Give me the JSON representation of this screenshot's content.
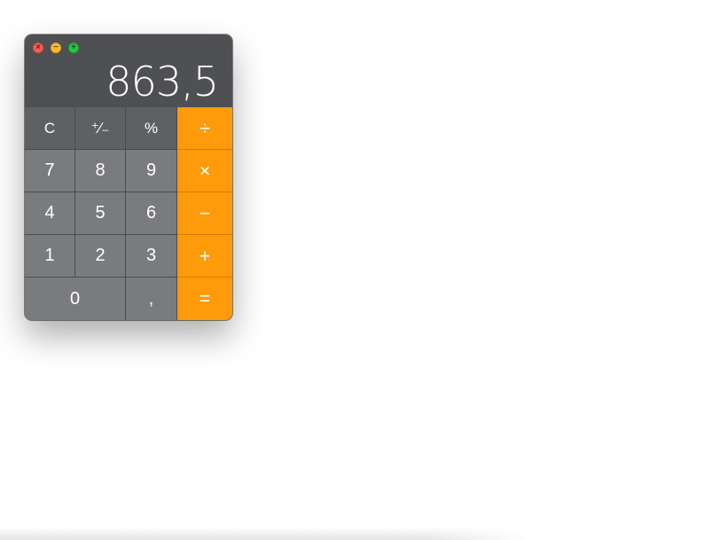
{
  "window": {
    "close_glyph": "×",
    "minimize_glyph": "−",
    "maximize_glyph": "+"
  },
  "display": {
    "value": "863,5"
  },
  "keys": {
    "clear": "C",
    "sign": "⁺∕₋",
    "percent": "%",
    "divide": "÷",
    "seven": "7",
    "eight": "8",
    "nine": "9",
    "multiply": "×",
    "four": "4",
    "five": "5",
    "six": "6",
    "subtract": "−",
    "one": "1",
    "two": "2",
    "three": "3",
    "add": "+",
    "zero": "0",
    "decimal": ",",
    "equals": "="
  },
  "colors": {
    "operator": "#ff9a0a",
    "function_key": "#5f6064",
    "number_key": "#7a7b7e",
    "display_bg": "#4f5053"
  }
}
